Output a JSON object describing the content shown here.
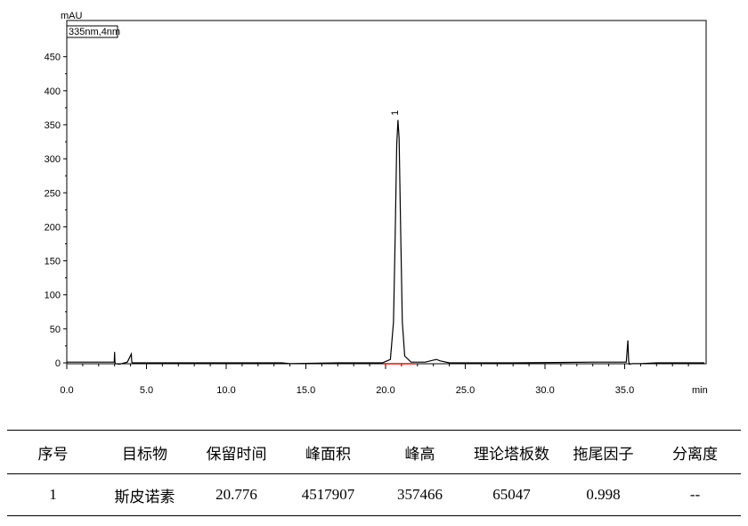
{
  "chart_data": {
    "type": "line",
    "ylabel": "mAU",
    "xlabel": "min",
    "series_label": "335nm,4nm",
    "peak_label": "1",
    "xlim": [
      0,
      40
    ],
    "ylim": [
      -12,
      470
    ],
    "xticks": [
      0,
      5,
      10,
      15,
      20,
      25,
      30,
      35
    ],
    "xtick_labels": [
      "0.0",
      "5.0",
      "10.0",
      "15.0",
      "20.0",
      "25.0",
      "30.0",
      "35.0"
    ],
    "yticks": [
      0,
      50,
      100,
      150,
      200,
      250,
      300,
      350,
      400,
      450
    ],
    "ytick_labels": [
      "0",
      "50",
      "100",
      "150",
      "200",
      "250",
      "300",
      "350",
      "400",
      "450"
    ],
    "grid": false,
    "line_color": "#000000",
    "baseline_color": "#ff0000",
    "series": [
      {
        "x": [
          0,
          2.5,
          2.98,
          3.0,
          3.02,
          3.05,
          3.3,
          3.8,
          4.05,
          4.08,
          4.12,
          4.3,
          8,
          13.5,
          14,
          17,
          19.8,
          20.3,
          20.5,
          20.6,
          20.7,
          20.776,
          20.85,
          20.95,
          21.05,
          21.2,
          21.6,
          22.5,
          23.0,
          23.2,
          23.4,
          24,
          28,
          33,
          35.1,
          35.2,
          35.25,
          35.3,
          35.5,
          36,
          37,
          38,
          40
        ],
        "y": [
          1,
          1,
          1,
          16,
          1,
          -1,
          -2,
          1,
          13,
          1,
          0,
          0,
          0,
          0,
          -1,
          0,
          0,
          5,
          60,
          180,
          320,
          357,
          330,
          190,
          60,
          10,
          1,
          1,
          4,
          5,
          3,
          0,
          0,
          1,
          1,
          33,
          2,
          -2,
          -1,
          -1,
          0,
          0,
          0
        ]
      }
    ],
    "peak_baseline": [
      19.9,
      21.8
    ]
  },
  "table": {
    "headers": [
      "序号",
      "目标物",
      "保留时间",
      "峰面积",
      "峰高",
      "理论塔板数",
      "拖尾因子",
      "分离度"
    ],
    "rows": [
      [
        "1",
        "斯皮诺素",
        "20.776",
        "4517907",
        "357466",
        "65047",
        "0.998",
        "--"
      ]
    ]
  }
}
